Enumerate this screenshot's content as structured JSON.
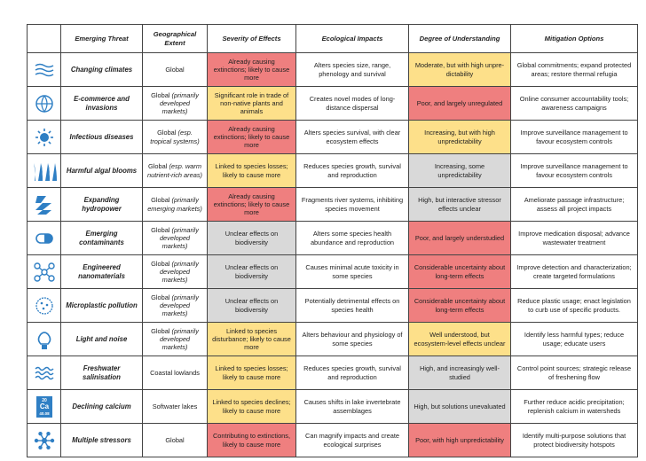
{
  "table": {
    "header": [
      "Emerging Threat",
      "Geographical Extent",
      "Severity of Effects",
      "Ecological Impacts",
      "Degree of Understanding",
      "Mitigation Options"
    ],
    "rows": [
      {
        "threat": "Changing  climates",
        "extent": {
          "text": "Global"
        },
        "severity": {
          "text": "Already causing extinctions; likely to cause more",
          "color": "#ef7f7f"
        },
        "impacts": "Alters species size, range, phenology and survival",
        "understanding": {
          "text": "Moderate, but with high unpre-dictability",
          "color": "#fde08a"
        },
        "mitigation": "Global commitments; expand protected areas; restore thermal refugia"
      },
      {
        "threat": "E-commerce and invasions",
        "extent": {
          "text": "Global",
          "note": "(primarily developed markets)"
        },
        "severity": {
          "text": "Significant role in trade of non-native plants and animals",
          "color": "#fde08a"
        },
        "impacts": "Creates novel modes of long-distance dispersal",
        "understanding": {
          "text": "Poor, and largely unregulated",
          "color": "#ef7f7f"
        },
        "mitigation": "Online consumer accountability tools; awareness campaigns"
      },
      {
        "threat": "Infectious diseases",
        "extent": {
          "text": "Global",
          "note": "(esp. tropical systems)"
        },
        "severity": {
          "text": "Already causing extinctions; likely to cause more",
          "color": "#ef7f7f"
        },
        "impacts": "Alters species survival, with clear ecosystem effects",
        "understanding": {
          "text": "Increasing, but with high unpredictability",
          "color": "#fde08a"
        },
        "mitigation": "Improve surveillance management to favour ecosystem controls"
      },
      {
        "threat": "Harmful algal blooms",
        "extent": {
          "text": "Global",
          "note": "(esp. warm nutrient-rich areas)"
        },
        "severity": {
          "text": "Linked to species losses; likely to cause more",
          "color": "#fde08a"
        },
        "impacts": "Reduces species growth, survival and reproduction",
        "understanding": {
          "text": "Increasing, some unpredictability",
          "color": "#d9d9d9"
        },
        "mitigation": "Improve surveillance management to favour ecosystem controls"
      },
      {
        "threat": "Expanding hydropower",
        "extent": {
          "text": "Global",
          "note": "(primarily emerging markets)"
        },
        "severity": {
          "text": "Already causing extinctions; likely to cause more",
          "color": "#ef7f7f"
        },
        "impacts": "Fragments river systems, inhibiting species movement",
        "understanding": {
          "text": "High, but interactive stressor effects unclear",
          "color": "#d9d9d9"
        },
        "mitigation": "Ameliorate passage infrastructure; assess all project impacts"
      },
      {
        "threat": "Emerging contaminants",
        "extent": {
          "text": "Global",
          "note": "(primarily developed markets)"
        },
        "severity": {
          "text": "Unclear effects on biodiversity",
          "color": "#d9d9d9"
        },
        "impacts": "Alters some species health abundance and reproduction",
        "understanding": {
          "text": "Poor, and largely understudied",
          "color": "#ef7f7f"
        },
        "mitigation": "Improve medication disposal; advance wastewater treatment"
      },
      {
        "threat": "Engineered nanomaterials",
        "extent": {
          "text": "Global",
          "note": "(primarily developed markets)"
        },
        "severity": {
          "text": "Unclear effects on biodiversity",
          "color": "#d9d9d9"
        },
        "impacts": "Causes minimal acute toxicity in some species",
        "understanding": {
          "text": "Considerable uncertainty about long-term effects",
          "color": "#ef7f7f"
        },
        "mitigation": "Improve detection and characterization; create targeted formulations"
      },
      {
        "threat": "Microplastic pollution",
        "extent": {
          "text": "Global",
          "note": "(primarily developed markets)"
        },
        "severity": {
          "text": "Unclear effects on biodiversity",
          "color": "#d9d9d9"
        },
        "impacts": "Potentially detrimental effects on species health",
        "understanding": {
          "text": "Considerable uncertainty about long-term effects",
          "color": "#ef7f7f"
        },
        "mitigation": "Reduce plastic usage; enact legislation to curb use of specific products."
      },
      {
        "threat": "Light and noise",
        "extent": {
          "text": "Global",
          "note": "(primarily developed markets)"
        },
        "severity": {
          "text": "Linked to species disturbance; likely to cause more",
          "color": "#fde08a"
        },
        "impacts": "Alters behaviour and physiology of some species",
        "understanding": {
          "text": "Well understood, but ecosystem-level effects unclear",
          "color": "#fde08a"
        },
        "mitigation": "Identify less harmful types; reduce usage; educate users"
      },
      {
        "threat": "Freshwater salinisation",
        "extent": {
          "text": "Coastal lowlands"
        },
        "severity": {
          "text": "Linked to species losses; likely to cause more",
          "color": "#fde08a"
        },
        "impacts": "Reduces species growth, survival and reproduction",
        "understanding": {
          "text": "High, and increasingly well-studied",
          "color": "#d9d9d9"
        },
        "mitigation": "Control point sources; strategic release of freshening flow"
      },
      {
        "threat": "Declining calcium",
        "icon_labels": [
          "20",
          "Ca",
          "40.08"
        ],
        "extent": {
          "text": "Softwater lakes"
        },
        "severity": {
          "text": "Linked to species declines; likely to cause more",
          "color": "#fde08a"
        },
        "impacts": "Causes shifts in lake invertebrate assemblages",
        "understanding": {
          "text": "High, but solutions unevaluated",
          "color": "#d9d9d9"
        },
        "mitigation": "Further reduce acidic precipitation; replenish calcium in watersheds"
      },
      {
        "threat": "Multiple stressors",
        "extent": {
          "text": "Global"
        },
        "severity": {
          "text": "Contributing to extinctions, likely to cause more",
          "color": "#ef7f7f"
        },
        "impacts": "Can magnify impacts and create ecological surprises",
        "understanding": {
          "text": "Poor, with high unpredictability",
          "color": "#ef7f7f"
        },
        "mitigation": "Identify multi-purpose solutions that protect biodiversity hotspots"
      }
    ]
  }
}
